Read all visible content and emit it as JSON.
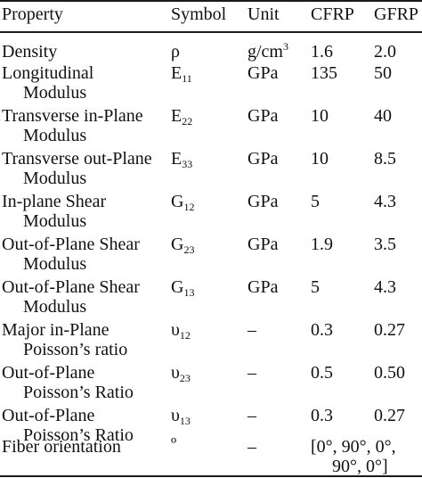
{
  "header": {
    "property": "Property",
    "symbol": "Symbol",
    "unit": "Unit",
    "cfrp": "CFRP",
    "gfrp": "GFRP"
  },
  "rows": [
    {
      "prop1": "Density",
      "prop2": "",
      "sym": "ρ",
      "sub": "",
      "unit": "g/cm",
      "unit_sup": "3",
      "cfrp": "1.6",
      "gfrp": "2.0"
    },
    {
      "prop1": "Longitudinal",
      "prop2": "Modulus",
      "sym": "E",
      "sub": "11",
      "unit": "GPa",
      "unit_sup": "",
      "cfrp": "135",
      "gfrp": "50"
    },
    {
      "prop1": "Transverse in-Plane",
      "prop2": "Modulus",
      "sym": "E",
      "sub": "22",
      "unit": "GPa",
      "unit_sup": "",
      "cfrp": "10",
      "gfrp": "40"
    },
    {
      "prop1": "Transverse out-Plane",
      "prop2": "Modulus",
      "sym": "E",
      "sub": "33",
      "unit": "GPa",
      "unit_sup": "",
      "cfrp": "10",
      "gfrp": "8.5"
    },
    {
      "prop1": "In-plane Shear",
      "prop2": "Modulus",
      "sym": "G",
      "sub": "12",
      "unit": "GPa",
      "unit_sup": "",
      "cfrp": "5",
      "gfrp": "4.3"
    },
    {
      "prop1": "Out-of-Plane Shear",
      "prop2": "Modulus",
      "sym": "G",
      "sub": "23",
      "unit": "GPa",
      "unit_sup": "",
      "cfrp": "1.9",
      "gfrp": "3.5"
    },
    {
      "prop1": "Out-of-Plane Shear",
      "prop2": "Modulus",
      "sym": "G",
      "sub": "13",
      "unit": "GPa",
      "unit_sup": "",
      "cfrp": "5",
      "gfrp": "4.3"
    },
    {
      "prop1": "Major in-Plane",
      "prop2": "Poisson’s ratio",
      "sym": "υ",
      "sub": "12",
      "unit": "–",
      "unit_sup": "",
      "cfrp": "0.3",
      "gfrp": "0.27"
    },
    {
      "prop1": "Out-of-Plane",
      "prop2": "Poisson’s Ratio",
      "sym": "υ",
      "sub": "23",
      "unit": "–",
      "unit_sup": "",
      "cfrp": "0.5",
      "gfrp": "0.50"
    },
    {
      "prop1": "Out-of-Plane",
      "prop2": "Poisson’s Ratio",
      "sym": "υ",
      "sub": "13",
      "unit": "–",
      "unit_sup": "",
      "cfrp": "0.3",
      "gfrp": "0.27"
    }
  ],
  "fiber": {
    "prop": "Fiber orientation",
    "sym": "º",
    "unit": "–",
    "value_line1": "[0°, 90°, 0°,",
    "value_line2": "90°, 0°]"
  }
}
